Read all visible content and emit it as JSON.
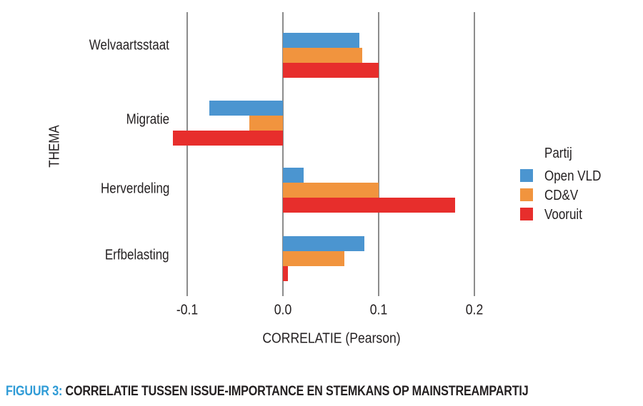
{
  "figure": {
    "caption_prefix": "FIGUUR 3:",
    "caption_text": "CORRELATIE TUSSEN ISSUE-IMPORTANCE EN STEMKANS OP MAINSTREAMPARTIJ"
  },
  "colors": {
    "open_vld": "#4B95D0",
    "cdv": "#F1943E",
    "vooruit": "#E72E2C",
    "gridline": "#8C8C8C",
    "text": "#231F20",
    "caption_accent": "#2F9BD6"
  },
  "chart_data": {
    "type": "bar",
    "orientation": "horizontal",
    "title": "",
    "xlabel": "CORRELATIE (Pearson)",
    "ylabel": "THEMA",
    "categories": [
      "Welvaartsstaat",
      "Migratie",
      "Herverdeling",
      "Erfbelasting"
    ],
    "series": [
      {
        "name": "Open VLD",
        "color": "#4B95D0",
        "values": [
          0.08,
          -0.077,
          0.022,
          0.085
        ]
      },
      {
        "name": "CD&V",
        "color": "#F1943E",
        "values": [
          0.083,
          -0.035,
          0.1,
          0.064
        ]
      },
      {
        "name": "Vooruit",
        "color": "#E72E2C",
        "values": [
          0.1,
          -0.115,
          0.18,
          0.005
        ]
      }
    ],
    "xticks": [
      -0.1,
      0.0,
      0.1,
      0.2
    ],
    "xtick_labels": [
      "-0.1",
      "0.0",
      "0.1",
      "0.2"
    ],
    "xlim": [
      -0.13,
      0.22
    ],
    "grid": "vertical-only",
    "legend": {
      "title": "Partij",
      "position": "right"
    }
  }
}
